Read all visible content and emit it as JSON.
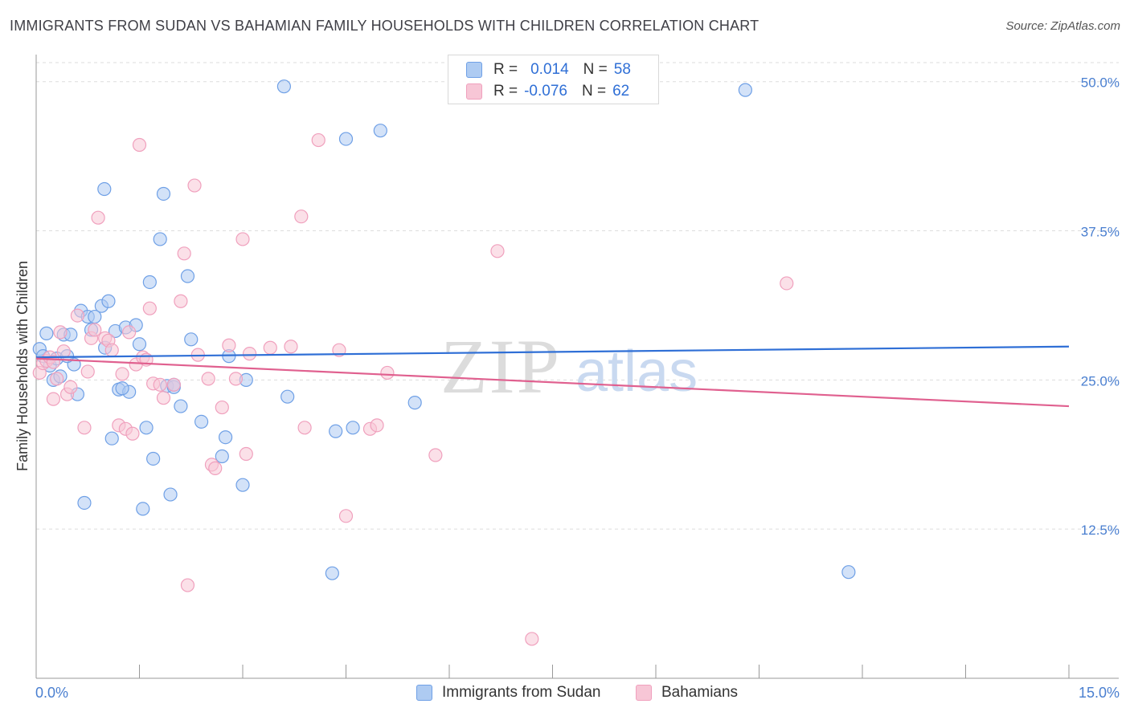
{
  "title": "IMMIGRANTS FROM SUDAN VS BAHAMIAN FAMILY HOUSEHOLDS WITH CHILDREN CORRELATION CHART",
  "source": "Source: ZipAtlas.com",
  "watermark": {
    "zip": "ZIP",
    "atlas": "atlas"
  },
  "legend": {
    "rows": [
      {
        "r_label": "R =",
        "r_value": "0.014",
        "n_label": "N =",
        "n_value": "58",
        "color": "#6fa0e6"
      },
      {
        "r_label": "R =",
        "r_value": "-0.076",
        "n_label": "N =",
        "n_value": "62",
        "color": "#f0a0bd"
      }
    ]
  },
  "bottom_legend": [
    {
      "label": "Immigrants from Sudan",
      "color": "#6fa0e6"
    },
    {
      "label": "Bahamians",
      "color": "#f0a0bd"
    }
  ],
  "colors": {
    "blue_fill": "#aecbf2",
    "blue_stroke": "#6fa0e6",
    "blue_line": "#2f6fd6",
    "pink_fill": "#f7c6d6",
    "pink_stroke": "#f0a0bd",
    "pink_line": "#e0608f",
    "grid": "#dddddd",
    "axis": "#999999"
  },
  "chart_data": {
    "type": "scatter",
    "title": "IMMIGRANTS FROM SUDAN VS BAHAMIAN FAMILY HOUSEHOLDS WITH CHILDREN CORRELATION CHART",
    "xlabel": "",
    "ylabel": "Family Households with Children",
    "xlim": [
      0,
      15
    ],
    "ylim": [
      0,
      52
    ],
    "x_tick_labels": [
      "0.0%",
      "15.0%"
    ],
    "y_ticks": [
      12.5,
      25.0,
      37.5,
      50.0
    ],
    "y_tick_labels": [
      "12.5%",
      "25.0%",
      "37.5%",
      "50.0%"
    ],
    "grid": true,
    "series": [
      {
        "name": "Immigrants from Sudan",
        "points": [
          [
            0.05,
            27.6
          ],
          [
            0.1,
            27.0
          ],
          [
            0.15,
            28.9
          ],
          [
            0.2,
            26.2
          ],
          [
            0.25,
            25.0
          ],
          [
            0.3,
            26.8
          ],
          [
            0.35,
            25.3
          ],
          [
            0.4,
            28.8
          ],
          [
            0.5,
            28.8
          ],
          [
            0.6,
            23.8
          ],
          [
            0.7,
            14.7
          ],
          [
            0.65,
            30.8
          ],
          [
            0.75,
            30.3
          ],
          [
            0.85,
            30.3
          ],
          [
            0.8,
            29.2
          ],
          [
            0.95,
            31.2
          ],
          [
            1.0,
            27.7
          ],
          [
            1.05,
            31.6
          ],
          [
            1.1,
            20.1
          ],
          [
            1.15,
            29.1
          ],
          [
            1.2,
            24.2
          ],
          [
            1.3,
            29.4
          ],
          [
            1.35,
            24.0
          ],
          [
            1.45,
            29.6
          ],
          [
            1.5,
            28.0
          ],
          [
            1.55,
            14.2
          ],
          [
            1.6,
            21.0
          ],
          [
            1.65,
            33.2
          ],
          [
            1.7,
            18.4
          ],
          [
            1.8,
            36.8
          ],
          [
            1.85,
            40.6
          ],
          [
            1.9,
            24.5
          ],
          [
            1.95,
            15.4
          ],
          [
            2.0,
            24.4
          ],
          [
            2.1,
            22.8
          ],
          [
            2.2,
            33.7
          ],
          [
            2.25,
            28.4
          ],
          [
            2.4,
            21.5
          ],
          [
            2.7,
            18.6
          ],
          [
            2.75,
            20.2
          ],
          [
            2.8,
            27.0
          ],
          [
            3.0,
            16.2
          ],
          [
            3.05,
            25.0
          ],
          [
            3.6,
            49.6
          ],
          [
            3.65,
            23.6
          ],
          [
            4.3,
            8.8
          ],
          [
            4.35,
            20.7
          ],
          [
            4.5,
            45.2
          ],
          [
            4.6,
            21.0
          ],
          [
            5.0,
            45.9
          ],
          [
            5.5,
            23.1
          ],
          [
            10.3,
            49.3
          ],
          [
            11.8,
            8.9
          ],
          [
            0.99,
            41.0
          ],
          [
            0.55,
            26.3
          ],
          [
            0.45,
            27.0
          ],
          [
            1.25,
            24.3
          ],
          [
            2.0,
            24.6
          ]
        ]
      },
      {
        "name": "Bahamians",
        "points": [
          [
            0.05,
            25.6
          ],
          [
            0.1,
            26.4
          ],
          [
            0.15,
            26.6
          ],
          [
            0.2,
            26.9
          ],
          [
            0.25,
            23.4
          ],
          [
            0.3,
            25.1
          ],
          [
            0.35,
            29.0
          ],
          [
            0.4,
            27.4
          ],
          [
            0.45,
            23.8
          ],
          [
            0.5,
            24.4
          ],
          [
            0.6,
            30.4
          ],
          [
            0.7,
            21.0
          ],
          [
            0.75,
            25.7
          ],
          [
            0.8,
            28.5
          ],
          [
            0.85,
            29.2
          ],
          [
            0.9,
            38.6
          ],
          [
            1.0,
            28.5
          ],
          [
            1.05,
            28.3
          ],
          [
            1.1,
            27.5
          ],
          [
            1.2,
            21.2
          ],
          [
            1.25,
            25.5
          ],
          [
            1.3,
            20.9
          ],
          [
            1.35,
            29.0
          ],
          [
            1.4,
            20.5
          ],
          [
            1.45,
            26.3
          ],
          [
            1.5,
            44.7
          ],
          [
            1.55,
            26.9
          ],
          [
            1.6,
            26.7
          ],
          [
            1.65,
            31.0
          ],
          [
            1.7,
            24.7
          ],
          [
            1.8,
            24.6
          ],
          [
            1.85,
            23.5
          ],
          [
            2.0,
            24.6
          ],
          [
            2.1,
            31.6
          ],
          [
            2.15,
            35.6
          ],
          [
            2.2,
            7.8
          ],
          [
            2.3,
            41.3
          ],
          [
            2.35,
            27.1
          ],
          [
            2.5,
            25.1
          ],
          [
            2.55,
            17.9
          ],
          [
            2.6,
            17.6
          ],
          [
            2.7,
            22.7
          ],
          [
            2.8,
            27.9
          ],
          [
            2.9,
            25.1
          ],
          [
            3.0,
            36.8
          ],
          [
            3.05,
            18.8
          ],
          [
            3.1,
            27.2
          ],
          [
            3.4,
            27.7
          ],
          [
            3.7,
            27.8
          ],
          [
            3.85,
            38.7
          ],
          [
            3.9,
            21.0
          ],
          [
            4.1,
            45.1
          ],
          [
            4.4,
            27.5
          ],
          [
            4.5,
            13.6
          ],
          [
            4.85,
            20.9
          ],
          [
            4.95,
            21.2
          ],
          [
            5.1,
            25.6
          ],
          [
            5.8,
            18.7
          ],
          [
            6.7,
            35.8
          ],
          [
            7.2,
            3.3
          ],
          [
            10.9,
            33.1
          ],
          [
            0.25,
            26.5
          ]
        ]
      }
    ],
    "trend_lines": [
      {
        "name": "Immigrants from Sudan",
        "x": [
          0,
          15
        ],
        "y": [
          26.9,
          27.8
        ]
      },
      {
        "name": "Bahamians",
        "x": [
          0,
          15
        ],
        "y": [
          26.8,
          22.8
        ]
      }
    ]
  }
}
